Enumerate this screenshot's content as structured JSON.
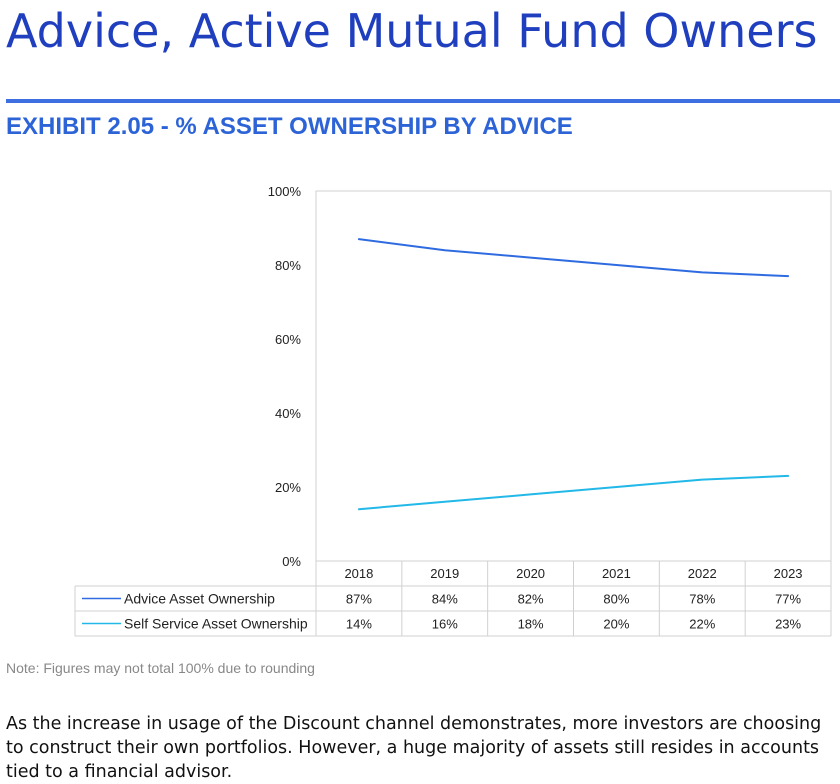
{
  "page": {
    "title": "Advice, Active Mutual Fund Owners",
    "exhibit": "EXHIBIT 2.05 - % ASSET OWNERSHIP BY ADVICE",
    "note": "Note: Figures may not total 100% due to rounding",
    "body": "As the increase in usage of the Discount channel demonstrates, more investors are choosing to construct their own portfolios. However, a huge majority of assets still resides in accounts tied to a financial advisor."
  },
  "colors": {
    "title": "#1f3fbf",
    "rule": "#3d6fe0",
    "exhibit": "#2c63d6",
    "advice": "#2f6be0",
    "self_service": "#22b8e8",
    "gridline": "#d0d0d0"
  },
  "chart_data": {
    "type": "line",
    "categories": [
      "2018",
      "2019",
      "2020",
      "2021",
      "2022",
      "2023"
    ],
    "yticks": [
      "0%",
      "20%",
      "40%",
      "60%",
      "80%",
      "100%"
    ],
    "ylim": [
      0,
      100
    ],
    "grid": false,
    "legend": "data-table",
    "series": [
      {
        "name": "Advice Asset Ownership",
        "values": [
          87,
          84,
          82,
          80,
          78,
          77
        ],
        "labels": [
          "87%",
          "84%",
          "82%",
          "80%",
          "78%",
          "77%"
        ],
        "color": "#2f6be0"
      },
      {
        "name": "Self Service Asset Ownership",
        "values": [
          14,
          16,
          18,
          20,
          22,
          23
        ],
        "labels": [
          "14%",
          "16%",
          "18%",
          "20%",
          "22%",
          "23%"
        ],
        "color": "#22b8e8"
      }
    ]
  }
}
